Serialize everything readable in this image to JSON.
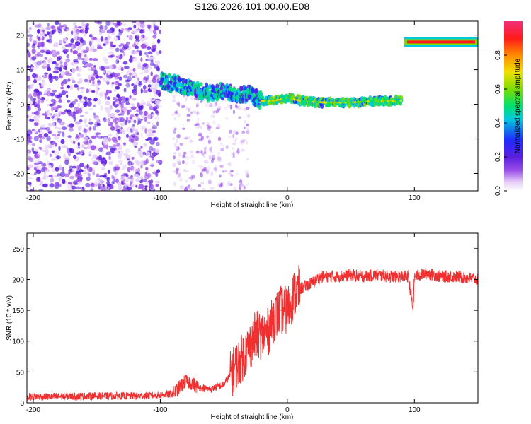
{
  "page": {
    "title": "S126.2026.101.00.00.E08"
  },
  "colors": {
    "snr_line": "#f03030",
    "colormap": [
      "#ffffff",
      "#e6cff8",
      "#9b4fe8",
      "#5a1ee0",
      "#1f2cff",
      "#00c8e0",
      "#00e070",
      "#7ddc00",
      "#f0e000",
      "#ff8a00",
      "#ff1a1a",
      "#f0307a"
    ]
  },
  "chart_data": [
    {
      "type": "heatmap",
      "name": "spectrogram",
      "xlabel": "Height of straight line (km)",
      "ylabel": "Frequency (Hz)",
      "xlim": [
        -205,
        150
      ],
      "ylim": [
        -25,
        24
      ],
      "xticks": [
        -200,
        -100,
        0,
        100
      ],
      "yticks": [
        -20,
        -10,
        0,
        10,
        20
      ],
      "colorbar": {
        "label": "Normalized spectral amplitude",
        "range": [
          0,
          1
        ],
        "ticks": [
          "0.0",
          "0.2",
          "0.4",
          "0.6",
          "0.8"
        ]
      },
      "ridge": [
        {
          "x": -100,
          "f": 7
        },
        {
          "x": -90,
          "f": 6
        },
        {
          "x": -80,
          "f": 5
        },
        {
          "x": -70,
          "f": 4
        },
        {
          "x": -60,
          "f": 3
        },
        {
          "x": -50,
          "f": 4
        },
        {
          "x": -40,
          "f": 3
        },
        {
          "x": -30,
          "f": 3
        },
        {
          "x": -20,
          "f": 1
        },
        {
          "x": -10,
          "f": 1
        },
        {
          "x": 0,
          "f": 2
        },
        {
          "x": 10,
          "f": 1
        },
        {
          "x": 30,
          "f": 0.5
        },
        {
          "x": 50,
          "f": 0.5
        },
        {
          "x": 70,
          "f": 1
        },
        {
          "x": 90,
          "f": 1
        }
      ],
      "high_tone": {
        "x_from": 92,
        "x_to": 150,
        "f": 18
      }
    },
    {
      "type": "line",
      "name": "snr",
      "xlabel": "Height of straight line (km)",
      "ylabel": "SNR (10 * v/v)",
      "xlim": [
        -205,
        150
      ],
      "ylim": [
        0,
        275
      ],
      "xticks": [
        -200,
        -100,
        0,
        100
      ],
      "yticks": [
        0,
        50,
        100,
        150,
        200,
        250
      ],
      "series": [
        {
          "name": "SNR",
          "x": [
            -205,
            -180,
            -150,
            -120,
            -100,
            -90,
            -85,
            -80,
            -75,
            -70,
            -60,
            -50,
            -40,
            -30,
            -25,
            -20,
            -15,
            -10,
            -5,
            0,
            5,
            10,
            15,
            20,
            25,
            30,
            40,
            50,
            60,
            70,
            80,
            90,
            95,
            97,
            99,
            100,
            110,
            120,
            130,
            140,
            150
          ],
          "y": [
            10,
            10,
            11,
            11,
            12,
            15,
            25,
            35,
            32,
            25,
            22,
            30,
            60,
            90,
            110,
            110,
            115,
            140,
            150,
            150,
            175,
            185,
            190,
            195,
            203,
            205,
            205,
            207,
            205,
            207,
            205,
            205,
            205,
            180,
            150,
            205,
            210,
            205,
            205,
            203,
            200
          ]
        }
      ]
    }
  ]
}
